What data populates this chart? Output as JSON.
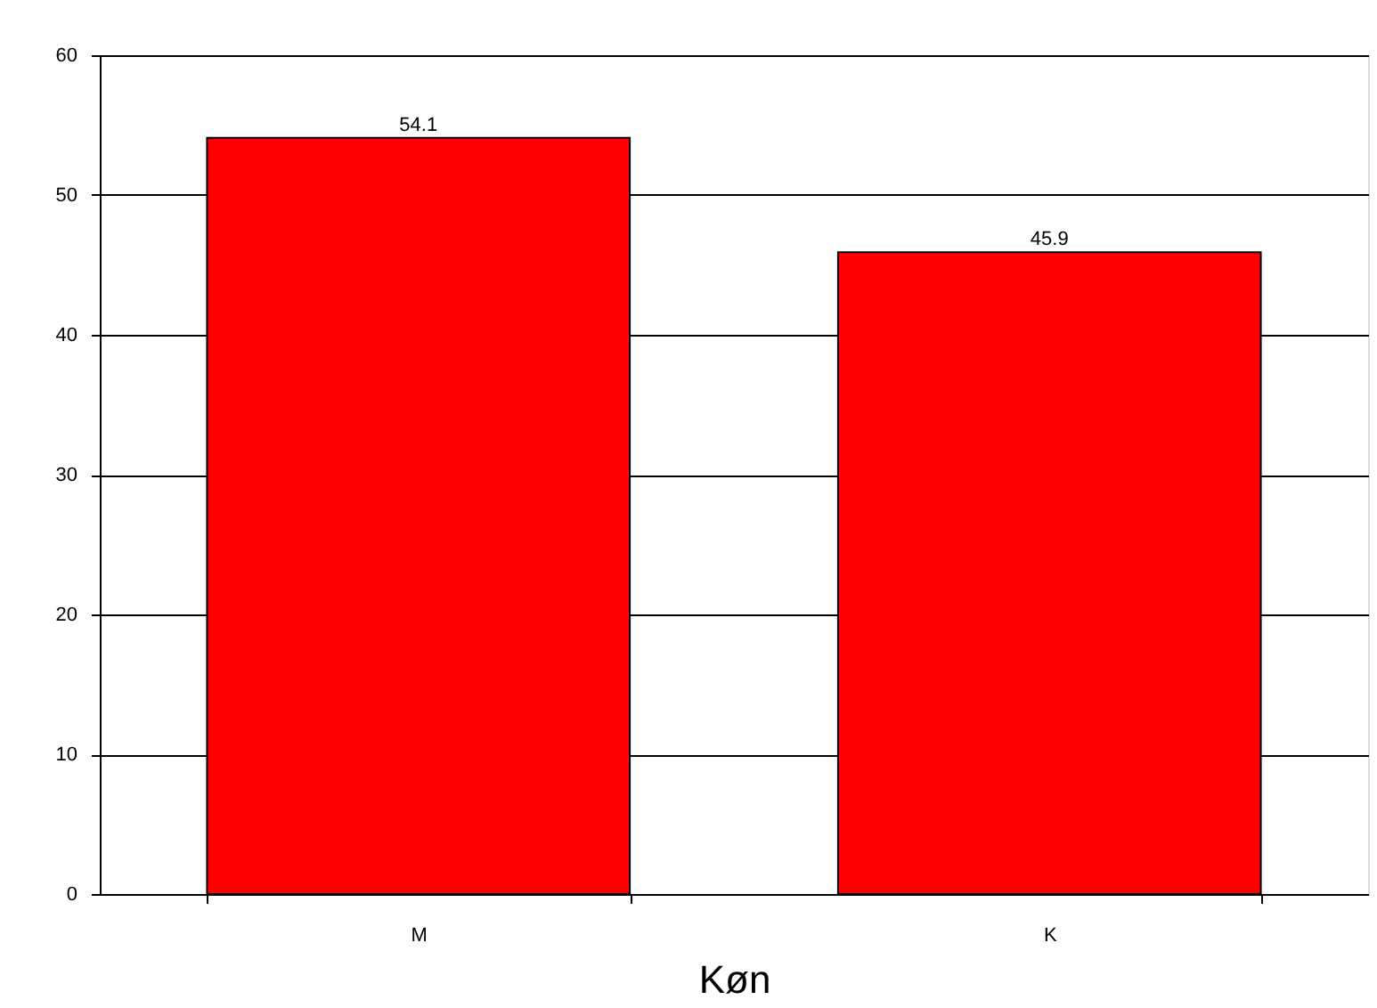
{
  "chart_data": {
    "type": "bar",
    "xlabel": "Køn",
    "categories": [
      "M",
      "K"
    ],
    "values": [
      54.1,
      45.9
    ],
    "color": "#ff0000",
    "ylim": [
      0,
      60
    ],
    "yticks": [
      0,
      10,
      20,
      30,
      40,
      50,
      60
    ],
    "grid": "y",
    "data_labels": true
  }
}
